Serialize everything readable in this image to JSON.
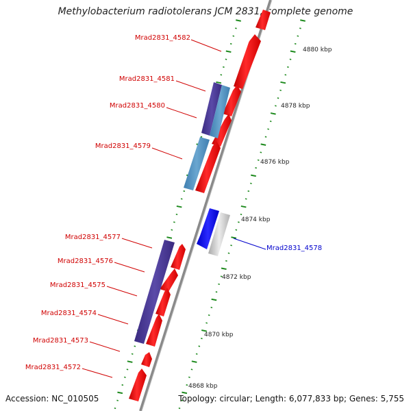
{
  "title": "Methylobacterium radiotolerans JCM 2831, complete genome",
  "footer": {
    "accession": "Accession: NC_010505",
    "summary": "Topology: circular; Length: 6,077,833 bp; Genes: 5,755"
  },
  "ticks": [
    "4880 kbp",
    "4878 kbp",
    "4876 kbp",
    "4874 kbp",
    "4872 kbp",
    "4870 kbp",
    "4868 kbp"
  ],
  "genes": [
    {
      "id": "g4582",
      "label": "Mrad2831_4582",
      "color": "#dd0000"
    },
    {
      "id": "g4581",
      "label": "Mrad2831_4581",
      "color": "#dd0000"
    },
    {
      "id": "g4580",
      "label": "Mrad2831_4580",
      "color": "#dd0000"
    },
    {
      "id": "g4579",
      "label": "Mrad2831_4579",
      "color": "#dd0000"
    },
    {
      "id": "g4578",
      "label": "Mrad2831_4578",
      "color": "#0000cc"
    },
    {
      "id": "g4577",
      "label": "Mrad2831_4577",
      "color": "#dd0000"
    },
    {
      "id": "g4576",
      "label": "Mrad2831_4576",
      "color": "#dd0000"
    },
    {
      "id": "g4575",
      "label": "Mrad2831_4575",
      "color": "#dd0000"
    },
    {
      "id": "g4574",
      "label": "Mrad2831_4574",
      "color": "#dd0000"
    },
    {
      "id": "g4573",
      "label": "Mrad2831_4573",
      "color": "#dd0000"
    },
    {
      "id": "g4572",
      "label": "Mrad2831_4572",
      "color": "#dd0000"
    }
  ]
}
